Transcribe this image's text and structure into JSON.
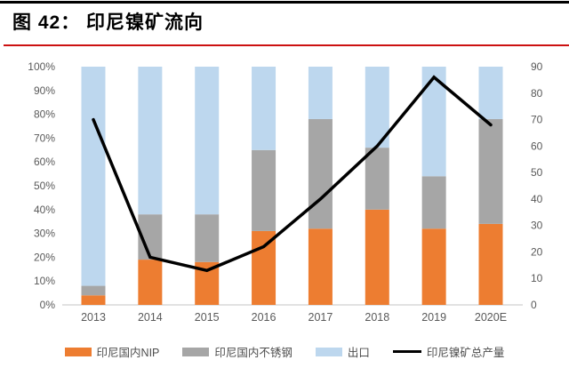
{
  "title": "图 42：  印尼镍矿流向",
  "colors": {
    "top_rule": "#000000",
    "title_rule": "#cc1111",
    "nip_orange": "#ED7D31",
    "stainless_gray": "#A6A6A6",
    "export_blue": "#BDD7EE",
    "line_black": "#000000",
    "axis_text": "#595959",
    "baseline": "#D9D9D9"
  },
  "chart_data": {
    "type": "bar",
    "subtype": "100%-stacked bars with line overlay on secondary axis",
    "title": "图 42：  印尼镍矿流向",
    "categories": [
      "2013",
      "2014",
      "2015",
      "2016",
      "2017",
      "2018",
      "2019",
      "2020E"
    ],
    "series": [
      {
        "name": "印尼国内NIP",
        "type": "bar",
        "axis": "left",
        "color": "#ED7D31",
        "values": [
          4,
          19,
          18,
          31,
          32,
          40,
          32,
          34
        ]
      },
      {
        "name": "印尼国内不锈钢",
        "type": "bar",
        "axis": "left",
        "color": "#A6A6A6",
        "values": [
          4,
          19,
          20,
          34,
          46,
          26,
          22,
          44
        ]
      },
      {
        "name": "出口",
        "type": "bar",
        "axis": "left",
        "color": "#BDD7EE",
        "values": [
          92,
          62,
          62,
          35,
          22,
          34,
          46,
          22
        ]
      },
      {
        "name": "印尼镍矿总产量",
        "type": "line",
        "axis": "right",
        "color": "#000000",
        "values": [
          70,
          18,
          13,
          22,
          40,
          60,
          86,
          68
        ]
      }
    ],
    "left_axis": {
      "min": 0,
      "max": 100,
      "unit": "%",
      "ticks": [
        "0%",
        "10%",
        "20%",
        "30%",
        "40%",
        "50%",
        "60%",
        "70%",
        "80%",
        "90%",
        "100%"
      ]
    },
    "right_axis": {
      "min": 0,
      "max": 90,
      "ticks": [
        "0",
        "10",
        "20",
        "30",
        "40",
        "50",
        "60",
        "70",
        "80",
        "90"
      ]
    },
    "legend_position": "bottom",
    "grid": false
  }
}
